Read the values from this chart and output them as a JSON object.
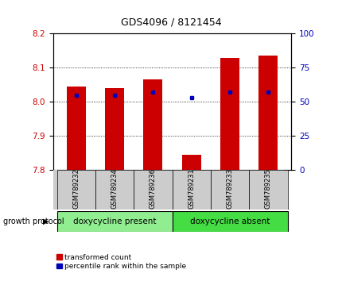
{
  "title": "GDS4096 / 8121454",
  "samples": [
    "GSM789232",
    "GSM789234",
    "GSM789236",
    "GSM789231",
    "GSM789233",
    "GSM789235"
  ],
  "red_values": [
    8.045,
    8.04,
    8.065,
    7.845,
    8.13,
    8.135
  ],
  "blue_percentiles": [
    55,
    55,
    57,
    53,
    57,
    57
  ],
  "ylim": [
    7.8,
    8.2
  ],
  "yticks_left": [
    7.8,
    7.9,
    8.0,
    8.1,
    8.2
  ],
  "yticks_right": [
    0,
    25,
    50,
    75,
    100
  ],
  "group_labels": [
    "doxycycline present",
    "doxycycline absent"
  ],
  "group_color1": "#90EE90",
  "group_color2": "#44DD44",
  "group_label_text": "growth protocol",
  "legend_red": "transformed count",
  "legend_blue": "percentile rank within the sample",
  "red_color": "#CC0000",
  "blue_color": "#0000BB",
  "bar_width": 0.5,
  "plot_bg": "#FFFFFF",
  "tick_color_left": "#CC0000",
  "tick_color_right": "#0000BB",
  "title_fontsize": 9,
  "tick_fontsize": 7.5,
  "sample_fontsize": 6,
  "group_fontsize": 7.5,
  "legend_fontsize": 6.5
}
